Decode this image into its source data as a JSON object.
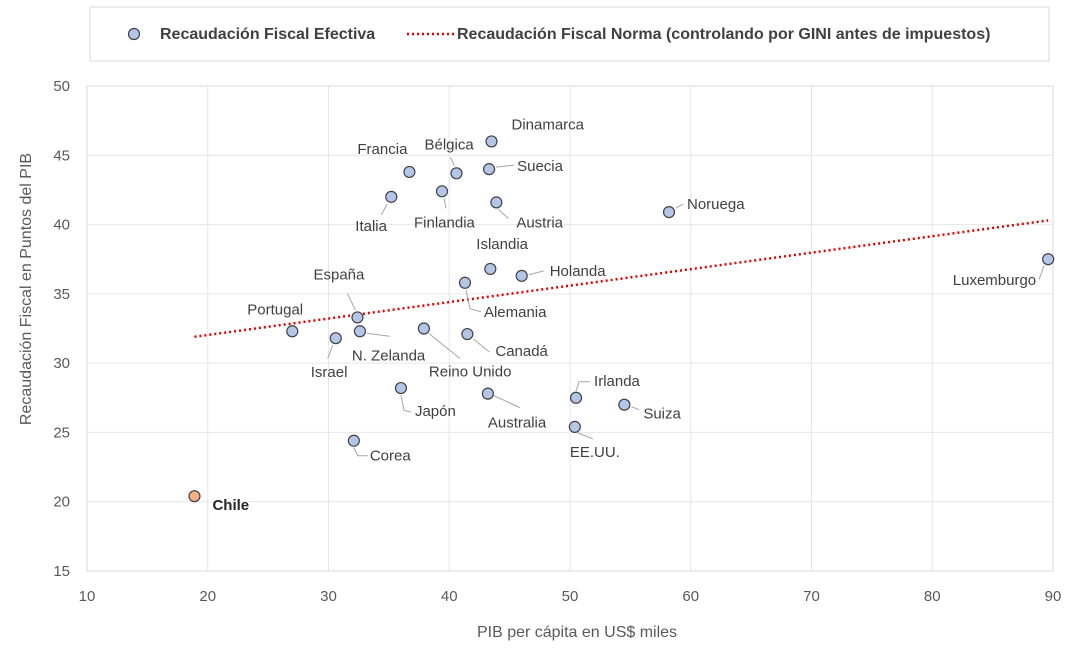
{
  "chart_data": {
    "type": "scatter",
    "xlabel": "PIB per cápita en US$ miles",
    "ylabel": "Recaudación Fiscal en Puntos del PIB",
    "xlim": [
      10,
      90
    ],
    "ylim": [
      15,
      50
    ],
    "xticks": [
      "10",
      "20",
      "30",
      "40",
      "50",
      "60",
      "70",
      "80",
      "90"
    ],
    "yticks": [
      "15",
      "20",
      "25",
      "30",
      "35",
      "40",
      "45",
      "50"
    ],
    "grid": true,
    "legend_position": "top",
    "series": [
      {
        "name": "Recaudación Fiscal Efectiva",
        "kind": "scatter",
        "color": "#b4c6e7",
        "stroke": "#404040",
        "points": [
          {
            "label": "Dinamarca",
            "x": 43.5,
            "y": 46.0
          },
          {
            "label": "Francia",
            "x": 36.7,
            "y": 43.8
          },
          {
            "label": "Bélgica",
            "x": 40.6,
            "y": 43.7
          },
          {
            "label": "Suecia",
            "x": 43.3,
            "y": 44.0
          },
          {
            "label": "Italia",
            "x": 35.2,
            "y": 42.0
          },
          {
            "label": "Finlandia",
            "x": 39.4,
            "y": 42.4
          },
          {
            "label": "Austria",
            "x": 43.9,
            "y": 41.6
          },
          {
            "label": "Noruega",
            "x": 58.2,
            "y": 40.9
          },
          {
            "label": "Islandia",
            "x": 43.4,
            "y": 36.8
          },
          {
            "label": "Holanda",
            "x": 46.0,
            "y": 36.3
          },
          {
            "label": "Alemania",
            "x": 41.3,
            "y": 35.8
          },
          {
            "label": "España",
            "x": 32.4,
            "y": 33.3
          },
          {
            "label": "Portugal",
            "x": 27.0,
            "y": 32.3
          },
          {
            "label": "N. Zelanda",
            "x": 32.6,
            "y": 32.3
          },
          {
            "label": "Israel",
            "x": 30.6,
            "y": 31.8
          },
          {
            "label": "Reino Unido",
            "x": 37.9,
            "y": 32.5
          },
          {
            "label": "Canadá",
            "x": 41.5,
            "y": 32.1
          },
          {
            "label": "Japón",
            "x": 36.0,
            "y": 28.2
          },
          {
            "label": "Australia",
            "x": 43.2,
            "y": 27.8
          },
          {
            "label": "Irlanda",
            "x": 50.5,
            "y": 27.5
          },
          {
            "label": "Suiza",
            "x": 54.5,
            "y": 27.0
          },
          {
            "label": "EE.UU.",
            "x": 50.4,
            "y": 25.4
          },
          {
            "label": "Corea",
            "x": 32.1,
            "y": 24.4
          },
          {
            "label": "Luxemburgo",
            "x": 89.6,
            "y": 37.5
          }
        ]
      },
      {
        "name": "Recaudación Fiscal Norma (controlando por GINI antes de impuestos)",
        "kind": "line",
        "style": "dotted",
        "color": "#e00000",
        "points": [
          {
            "x": 18.9,
            "y": 31.9
          },
          {
            "x": 89.6,
            "y": 40.3
          }
        ]
      }
    ],
    "highlight": {
      "label": "Chile",
      "x": 18.9,
      "y": 20.4,
      "color": "#f4b183"
    }
  }
}
